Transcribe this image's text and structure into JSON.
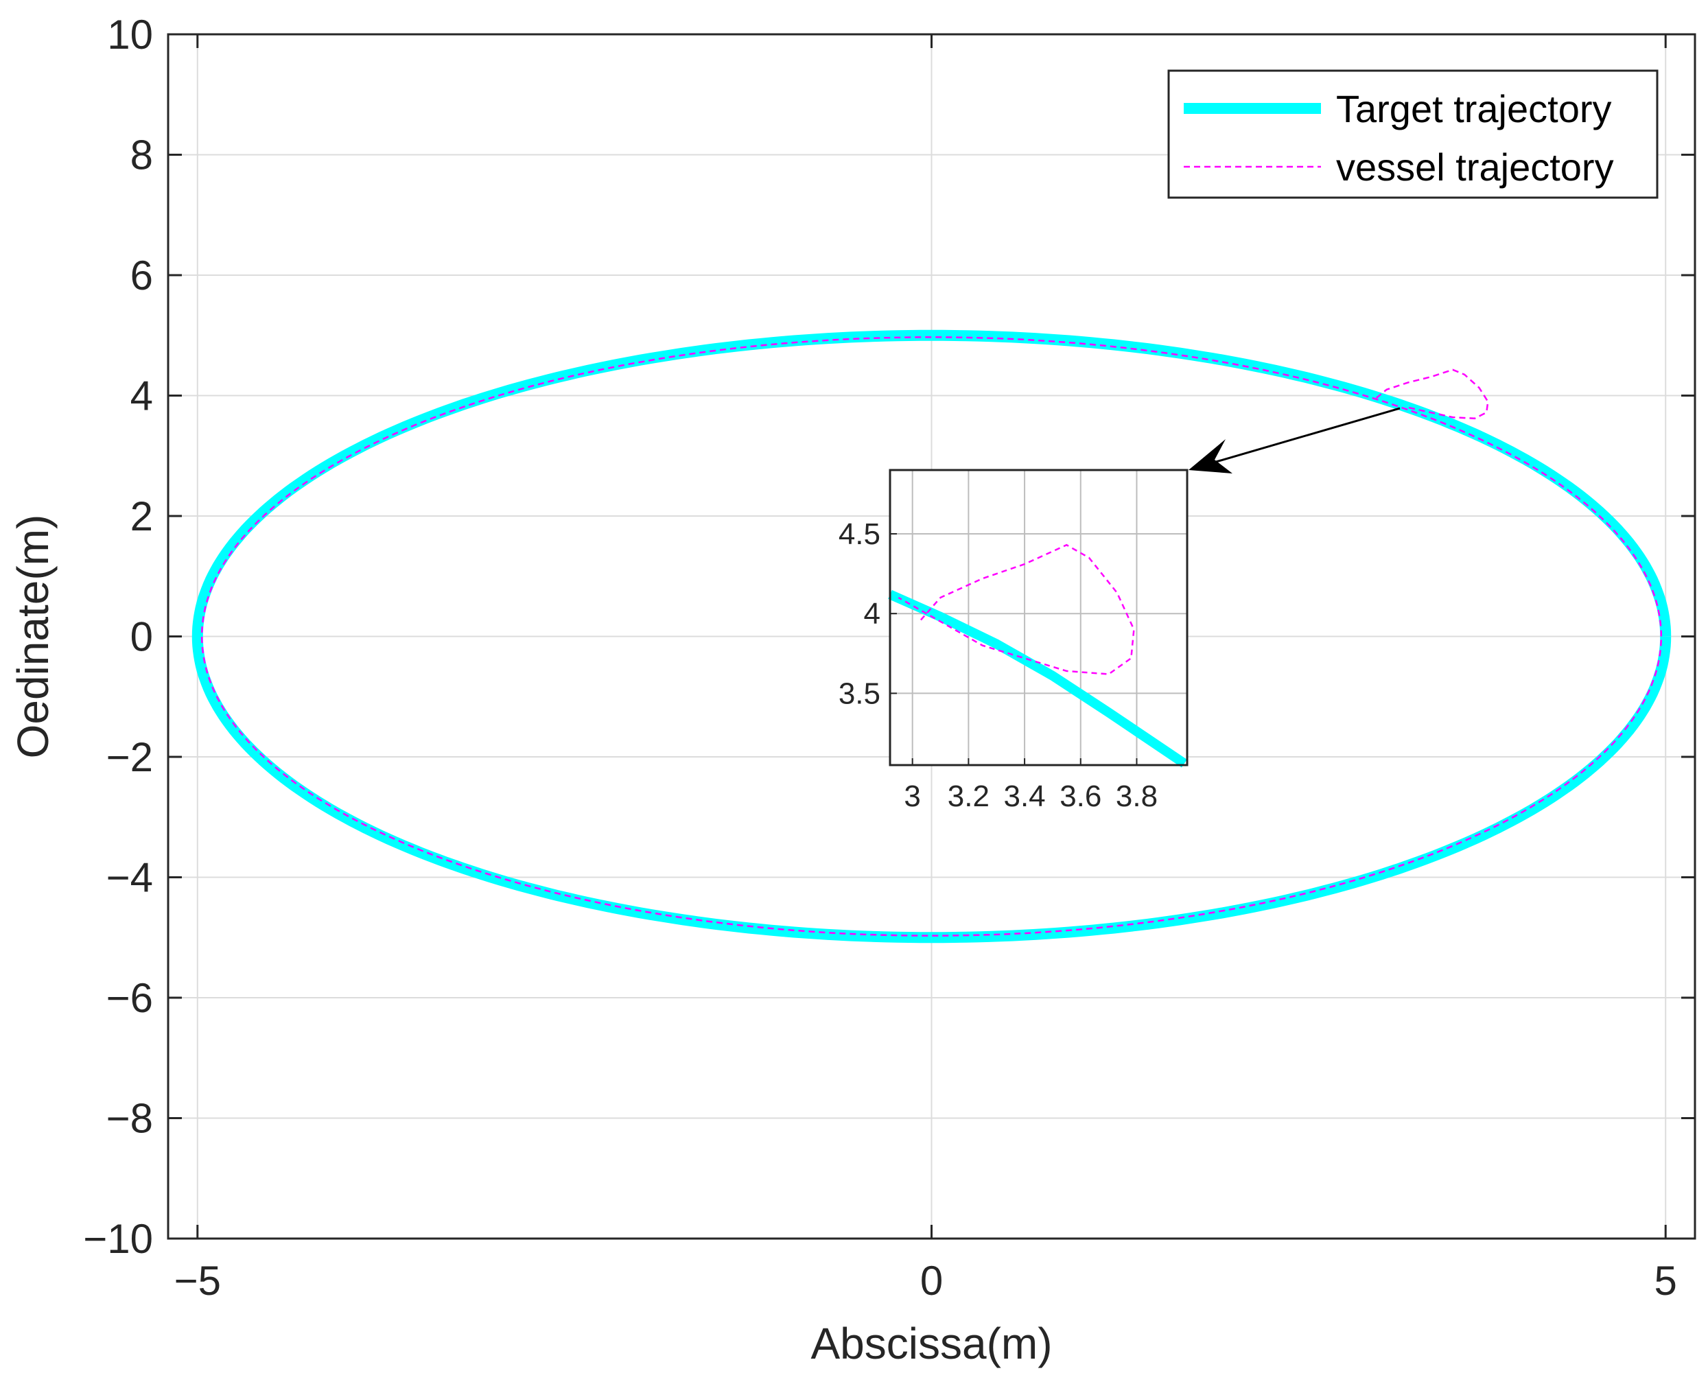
{
  "chart_data": {
    "type": "line",
    "xlabel": "Abscissa(m)",
    "ylabel": "Oedinate(m)",
    "xlim": [
      -5.2,
      5.2
    ],
    "ylim": [
      -10,
      10
    ],
    "xticks": [
      -5,
      0,
      5
    ],
    "yticks": [
      -10,
      -8,
      -6,
      -4,
      -2,
      0,
      2,
      4,
      6,
      8,
      10
    ],
    "xtick_labels": [
      "−5",
      "0",
      "5"
    ],
    "ytick_labels": [
      "−10",
      "−8",
      "−6",
      "−4",
      "−2",
      "0",
      "2",
      "4",
      "6",
      "8",
      "10"
    ],
    "grid": true,
    "legend_position": "top-right",
    "series": [
      {
        "name": "Target trajectory",
        "color": "#00FFFF",
        "style": "solid-thick",
        "shape": "ellipse",
        "center": [
          0,
          0
        ],
        "semi_axis_x": 5,
        "semi_axis_y": 5
      },
      {
        "name": "vessel trajectory",
        "color": "#FF00FF",
        "style": "dashed",
        "shape": "ellipse-with-start-loop",
        "center": [
          0,
          0
        ],
        "semi_axis_x": 4.97,
        "semi_axis_y": 4.97,
        "start_loop": [
          [
            3.03,
            3.96
          ],
          [
            3.1,
            4.1
          ],
          [
            3.25,
            4.22
          ],
          [
            3.4,
            4.31
          ],
          [
            3.55,
            4.43
          ],
          [
            3.63,
            4.35
          ],
          [
            3.73,
            4.13
          ],
          [
            3.79,
            3.9
          ],
          [
            3.78,
            3.72
          ],
          [
            3.7,
            3.62
          ],
          [
            3.55,
            3.64
          ],
          [
            3.4,
            3.72
          ],
          [
            3.25,
            3.8
          ]
        ]
      }
    ],
    "inset": {
      "xlim": [
        2.92,
        3.98
      ],
      "ylim": [
        3.05,
        4.9
      ],
      "xticks": [
        3.0,
        3.2,
        3.4,
        3.6,
        3.8
      ],
      "yticks": [
        3.5,
        4.0,
        4.5
      ],
      "xtick_labels": [
        "3",
        "3.2",
        "3.4",
        "3.6",
        "3.8"
      ],
      "ytick_labels": [
        "3.5",
        "4",
        "4.5"
      ],
      "grid": true,
      "target_segment": [
        [
          2.92,
          4.12
        ],
        [
          3.1,
          3.98
        ],
        [
          3.3,
          3.81
        ],
        [
          3.5,
          3.61
        ],
        [
          3.7,
          3.38
        ],
        [
          3.97,
          3.06
        ]
      ],
      "vessel_loop": [
        [
          3.03,
          3.96
        ],
        [
          3.1,
          4.1
        ],
        [
          3.25,
          4.22
        ],
        [
          3.4,
          4.31
        ],
        [
          3.55,
          4.43
        ],
        [
          3.63,
          4.35
        ],
        [
          3.73,
          4.13
        ],
        [
          3.79,
          3.9
        ],
        [
          3.78,
          3.72
        ],
        [
          3.7,
          3.62
        ],
        [
          3.55,
          3.64
        ],
        [
          3.4,
          3.72
        ],
        [
          3.25,
          3.8
        ],
        [
          3.1,
          3.95
        ],
        [
          2.95,
          4.1
        ]
      ]
    }
  }
}
